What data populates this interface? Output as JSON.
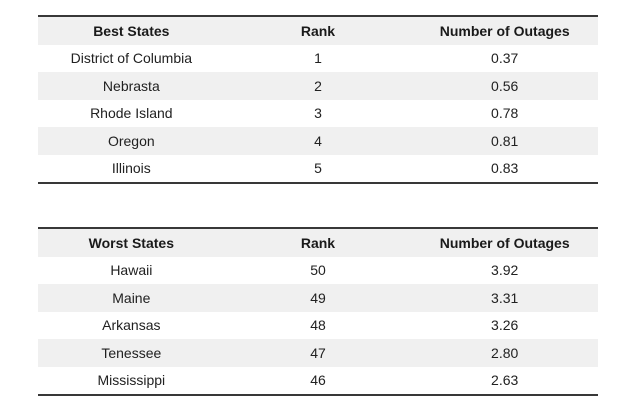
{
  "colors": {
    "background": "#ffffff",
    "stripe_gray": "#f0f0f0",
    "rule_dark": "#383838",
    "text": "#212121"
  },
  "tables": [
    {
      "name": "best-states",
      "headers": [
        "Best States",
        "Rank",
        "Number of Outages"
      ],
      "rows": [
        [
          "District of Columbia",
          "1",
          "0.37"
        ],
        [
          "Nebrasta",
          "2",
          "0.56"
        ],
        [
          "Rhode Island",
          "3",
          "0.78"
        ],
        [
          "Oregon",
          "4",
          "0.81"
        ],
        [
          "Illinois",
          "5",
          "0.83"
        ]
      ]
    },
    {
      "name": "worst-states",
      "headers": [
        "Worst States",
        "Rank",
        "Number of Outages"
      ],
      "rows": [
        [
          "Hawaii",
          "50",
          "3.92"
        ],
        [
          "Maine",
          "49",
          "3.31"
        ],
        [
          "Arkansas",
          "48",
          "3.26"
        ],
        [
          "Tenessee",
          "47",
          "2.80"
        ],
        [
          "Mississippi",
          "46",
          "2.63"
        ]
      ]
    }
  ]
}
